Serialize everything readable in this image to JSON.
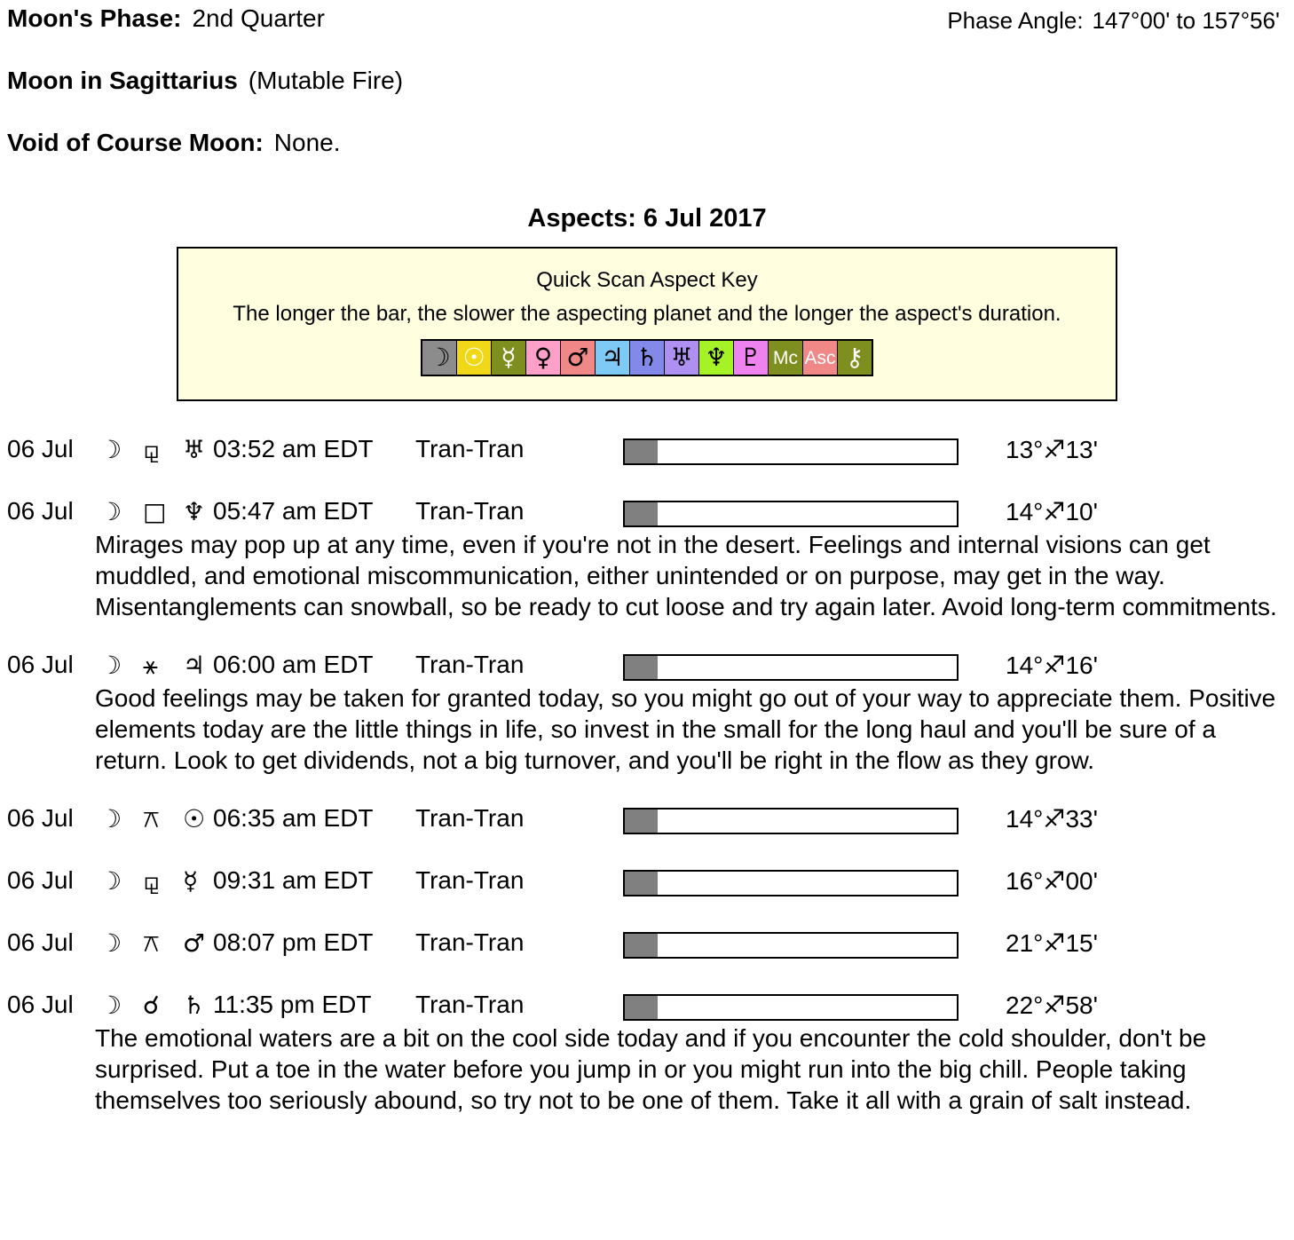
{
  "header": {
    "moon_phase_label": "Moon's Phase:",
    "moon_phase_value": "2nd Quarter",
    "moon_sign_label": "Moon in Sagittarius",
    "moon_sign_note": "(Mutable Fire)",
    "voc_label": "Void of Course Moon:",
    "voc_value": "None.",
    "phase_angle_label": "Phase Angle:",
    "phase_angle_value": "147°00' to 157°56'"
  },
  "aspects_title": "Aspects: 6 Jul 2017",
  "key": {
    "title": "Quick Scan Aspect Key",
    "subtitle": "The longer the bar, the slower the aspecting planet and the longer the aspect's duration.",
    "box_bg_color": "#ffffe0",
    "planets": [
      {
        "name": "moon",
        "glyph": "☽",
        "bg": "#8c8c8c",
        "fg": "#000000"
      },
      {
        "name": "sun",
        "glyph": "☉",
        "bg": "#f0d818",
        "fg": "#ffffff"
      },
      {
        "name": "mercury",
        "glyph": "☿",
        "bg": "#7f8f1f",
        "fg": "#ffffff"
      },
      {
        "name": "venus",
        "glyph": "♀",
        "bg": "#ffa0c8",
        "fg": "#000000"
      },
      {
        "name": "mars",
        "glyph": "♂",
        "bg": "#f08888",
        "fg": "#000000"
      },
      {
        "name": "jupiter",
        "glyph": "♃",
        "bg": "#7ec9f5",
        "fg": "#000000"
      },
      {
        "name": "saturn",
        "glyph": "♄",
        "bg": "#8289e8",
        "fg": "#000000"
      },
      {
        "name": "uranus",
        "glyph": "♅",
        "bg": "#ae8ff2",
        "fg": "#000000"
      },
      {
        "name": "neptune",
        "glyph": "♆",
        "bg": "#a5f226",
        "fg": "#000000"
      },
      {
        "name": "pluto",
        "glyph": "♇",
        "bg": "#ee82ee",
        "fg": "#000000"
      },
      {
        "name": "midheaven",
        "glyph": "Mc",
        "bg": "#7f8f1f",
        "fg": "#ffffff"
      },
      {
        "name": "ascendant",
        "glyph": "Asc",
        "bg": "#f08888",
        "fg": "#ffffff"
      },
      {
        "name": "chiron",
        "glyph": "⚷",
        "bg": "#7f8f1f",
        "fg": "#ffffff"
      }
    ]
  },
  "bar_fill_color": "#808080",
  "aspects": [
    {
      "date": "06 Jul",
      "body1_glyph": "☽",
      "body1_name": "moon",
      "aspect_glyph": "⚼",
      "aspect_name": "sesquiquadrate",
      "body2_glyph": "♅",
      "body2_name": "uranus",
      "time": "03:52 am EDT",
      "type": "Tran-Tran",
      "bar_pct": 10,
      "position": "13°♐13'",
      "text": ""
    },
    {
      "date": "06 Jul",
      "body1_glyph": "☽",
      "body1_name": "moon",
      "aspect_glyph": "□",
      "aspect_name": "square",
      "body2_glyph": "♆",
      "body2_name": "neptune",
      "time": "05:47 am EDT",
      "type": "Tran-Tran",
      "bar_pct": 10,
      "position": "14°♐10'",
      "text": "Mirages may pop up at any time, even if you're not in the desert. Feelings and internal visions can get muddled, and emotional miscommunication, either unintended or on purpose, may get in the way. Misentanglements can snowball, so be ready to cut loose and try again later. Avoid long-term commitments."
    },
    {
      "date": "06 Jul",
      "body1_glyph": "☽",
      "body1_name": "moon",
      "aspect_glyph": "⚹",
      "aspect_name": "sextile",
      "body2_glyph": "♃",
      "body2_name": "jupiter",
      "time": "06:00 am EDT",
      "type": "Tran-Tran",
      "bar_pct": 10,
      "position": "14°♐16'",
      "text": "Good feelings may be taken for granted today, so you might go out of your way to appreciate them. Positive elements today are the little things in life, so invest in the small for the long haul and you'll be sure of a return. Look to get dividends, not a big turnover, and you'll be right in the flow as they grow."
    },
    {
      "date": "06 Jul",
      "body1_glyph": "☽",
      "body1_name": "moon",
      "aspect_glyph": "⚻",
      "aspect_name": "quincunx",
      "body2_glyph": "☉",
      "body2_name": "sun",
      "time": "06:35 am EDT",
      "type": "Tran-Tran",
      "bar_pct": 10,
      "position": "14°♐33'",
      "text": ""
    },
    {
      "date": "06 Jul",
      "body1_glyph": "☽",
      "body1_name": "moon",
      "aspect_glyph": "⚼",
      "aspect_name": "sesquiquadrate",
      "body2_glyph": "☿",
      "body2_name": "mercury",
      "time": "09:31 am EDT",
      "type": "Tran-Tran",
      "bar_pct": 10,
      "position": "16°♐00'",
      "text": ""
    },
    {
      "date": "06 Jul",
      "body1_glyph": "☽",
      "body1_name": "moon",
      "aspect_glyph": "⚻",
      "aspect_name": "quincunx",
      "body2_glyph": "♂",
      "body2_name": "mars",
      "time": "08:07 pm EDT",
      "type": "Tran-Tran",
      "bar_pct": 10,
      "position": "21°♐15'",
      "text": ""
    },
    {
      "date": "06 Jul",
      "body1_glyph": "☽",
      "body1_name": "moon",
      "aspect_glyph": "☌",
      "aspect_name": "conjunction",
      "body2_glyph": "♄",
      "body2_name": "saturn",
      "time": "11:35 pm EDT",
      "type": "Tran-Tran",
      "bar_pct": 10,
      "position": "22°♐58'",
      "text": "The emotional waters are a bit on the cool side today and if you encounter the cold shoulder, don't be surprised. Put a toe in the water before you jump in or you might run into the big chill. People taking themselves too seriously abound, so try not to be one of them. Take it all with a grain of salt instead."
    }
  ]
}
